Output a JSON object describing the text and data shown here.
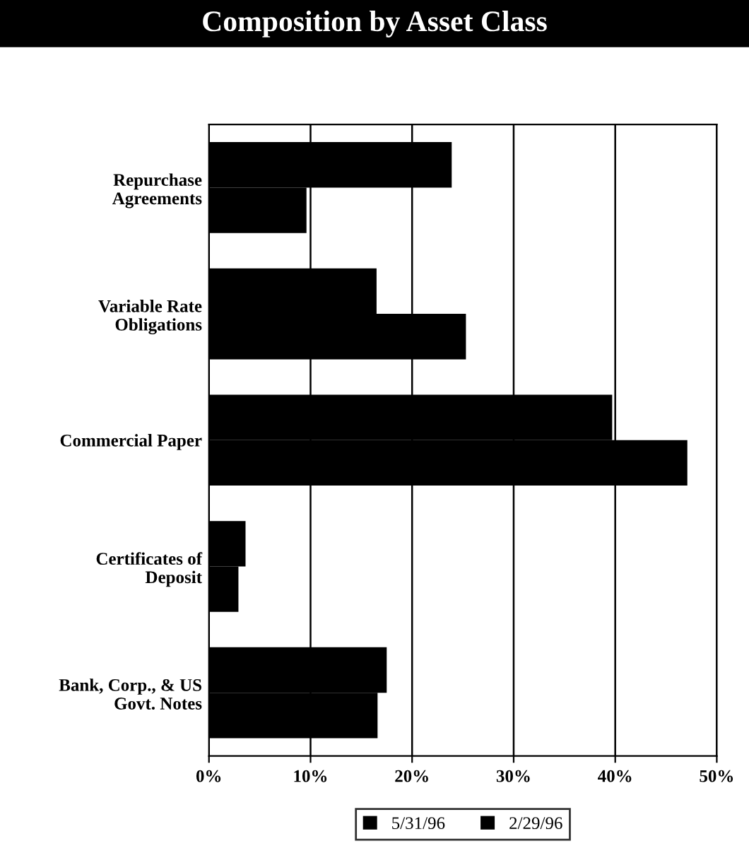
{
  "chart_data": {
    "type": "bar",
    "orientation": "horizontal",
    "title": "Composition by Asset Class",
    "categories": [
      "Repurchase\nAgreements",
      "Variable Rate\nObligations",
      "Commercial Paper",
      "Certificates of\nDeposit",
      "Bank, Corp., & US\nGovt. Notes"
    ],
    "series": [
      {
        "name": "5/31/96",
        "color": "#000000",
        "values": [
          23.9,
          16.5,
          39.7,
          3.6,
          17.5
        ]
      },
      {
        "name": "2/29/96",
        "color": "#000000",
        "values": [
          9.6,
          25.3,
          47.1,
          2.9,
          16.6
        ]
      }
    ],
    "xlim": [
      0,
      50
    ],
    "xticks": [
      {
        "value": 0,
        "label": "0%"
      },
      {
        "value": 10,
        "label": "10%"
      },
      {
        "value": 20,
        "label": "20%"
      },
      {
        "value": 30,
        "label": "30%"
      },
      {
        "value": 40,
        "label": "40%"
      },
      {
        "value": 50,
        "label": "50%"
      }
    ],
    "grid": "x",
    "legend": "bottom"
  }
}
